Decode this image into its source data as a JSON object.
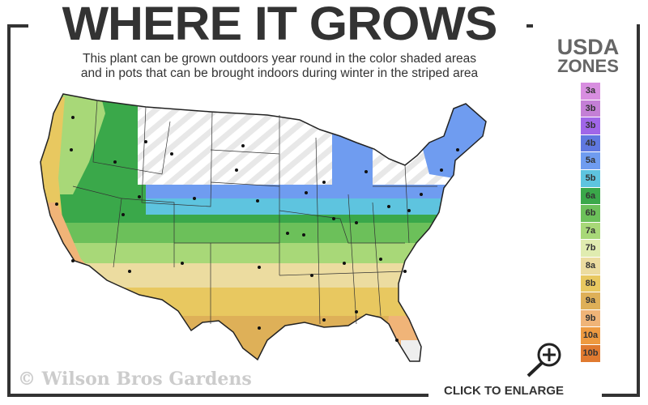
{
  "header": {
    "title": "WHERE IT GROWS",
    "subtitle_line1": "This plant can be grown outdoors year round in the color shaded areas",
    "subtitle_line2": "and in pots that can be brought indoors during winter in the striped area"
  },
  "legend": {
    "title_line1": "USDA",
    "title_line2": "ZONES",
    "zones": [
      {
        "label": "3a",
        "color": "#d88ee0"
      },
      {
        "label": "3b",
        "color": "#c47fd6"
      },
      {
        "label": "3b",
        "color": "#a066e8"
      },
      {
        "label": "4b",
        "color": "#5f78e0"
      },
      {
        "label": "5a",
        "color": "#6f9cf0"
      },
      {
        "label": "5b",
        "color": "#5ec4df"
      },
      {
        "label": "6a",
        "color": "#3aa84a"
      },
      {
        "label": "6b",
        "color": "#6cc05a"
      },
      {
        "label": "7a",
        "color": "#a8d878"
      },
      {
        "label": "7b",
        "color": "#e0ecb0"
      },
      {
        "label": "8a",
        "color": "#ecdca0"
      },
      {
        "label": "8b",
        "color": "#e8c860"
      },
      {
        "label": "9a",
        "color": "#deb058"
      },
      {
        "label": "9b",
        "color": "#f0b478"
      },
      {
        "label": "10a",
        "color": "#ee9a40"
      },
      {
        "label": "10b",
        "color": "#e07a30"
      }
    ]
  },
  "map": {
    "striped_area_color": "#eeeeee",
    "state_border_color": "#222222"
  },
  "watermark": "© Wilson Bros Gardens",
  "enlarge": {
    "label": "CLICK TO ENLARGE",
    "icon": "zoom-in-icon"
  }
}
